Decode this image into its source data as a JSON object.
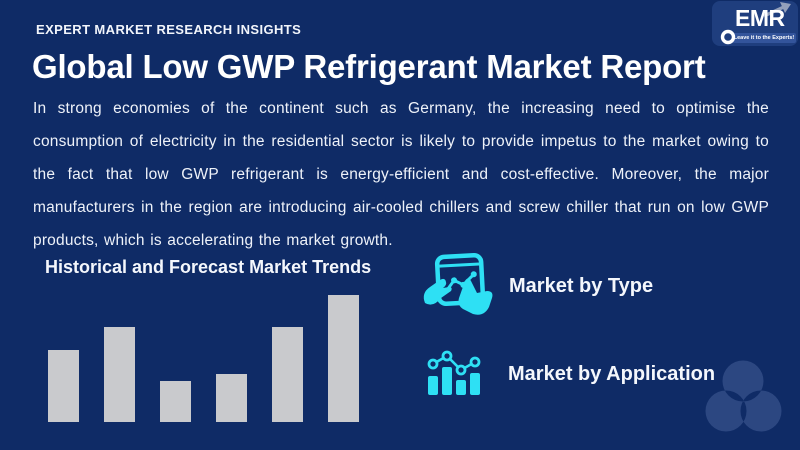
{
  "colors": {
    "background": "#0f2b66",
    "accent_cyan": "#2ee0f4",
    "bar_gray": "#c9cacd",
    "watermark_blue": "#2c4781",
    "logo_panel_blue": "#1f3e7e",
    "logo_arrow_gray": "#93a0bb",
    "logo_banner_blue": "#33549b"
  },
  "header": {
    "eyebrow": "EXPERT MARKET RESEARCH INSIGHTS",
    "logo": {
      "text": "EMR",
      "tagline": "Leave it to the Experts!"
    }
  },
  "title": "Global Low GWP Refrigerant Market Report",
  "paragraph": "In strong economies of the continent such as Germany, the increasing need to optimise the consumption of electricity in the residential sector is likely to provide impetus to the market owing to the fact that low GWP refrigerant is energy-efficient and cost-effective. Moreover, the major manufacturers in the region are introducing air-cooled chillers and screw chiller that run on low GWP products, which is accelerating the market growth.",
  "chart_data": {
    "type": "bar",
    "title": "Historical and Forecast Market Trends",
    "categories": [
      "",
      "",
      "",
      "",
      "",
      ""
    ],
    "values": [
      72,
      95,
      41,
      48,
      95,
      127
    ],
    "ylim": [
      0,
      127
    ],
    "value_note": "relative bar heights; chart has no axes, gridlines or data labels",
    "bar_color": "#c9cacd",
    "grid": false,
    "legend": false
  },
  "features": [
    {
      "label": "Market by Type",
      "icon": "tablet-trend-chart-icon"
    },
    {
      "label": "Market by Application",
      "icon": "bar-chart-trend-icon"
    }
  ],
  "watermark": {
    "shape": "three-overlapping-circles"
  }
}
